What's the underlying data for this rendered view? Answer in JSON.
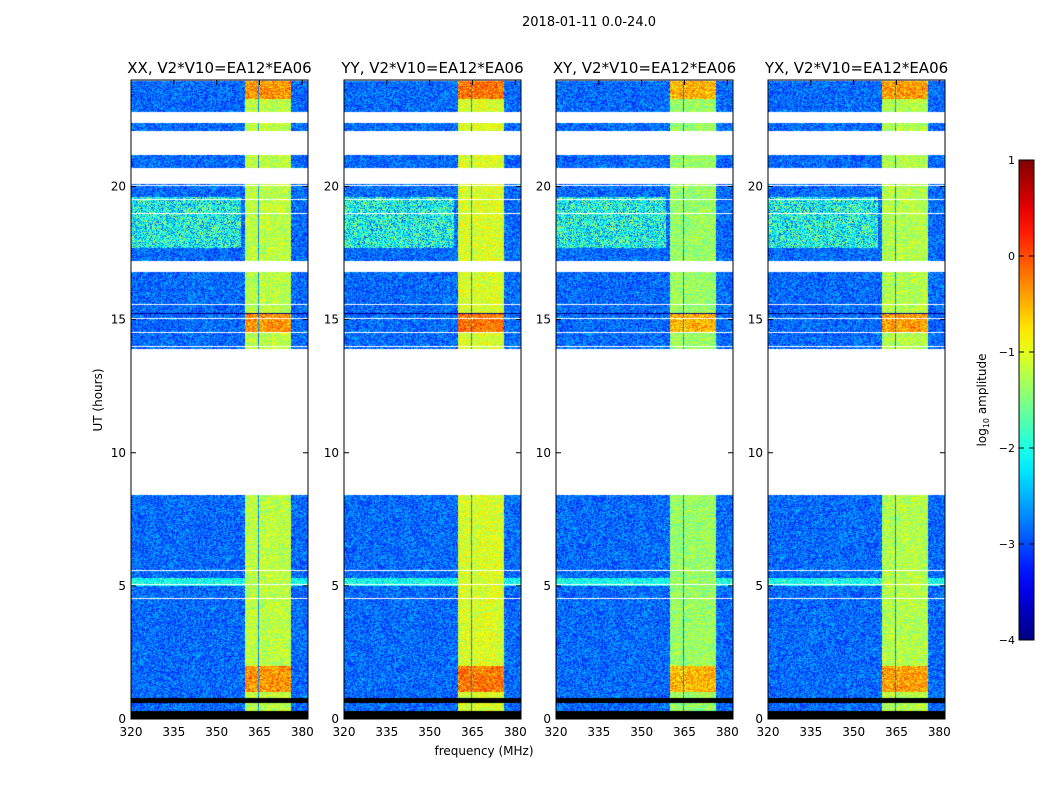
{
  "figure": {
    "suptitle": "2018-01-11 0.0-24.0"
  },
  "chart_data": {
    "type": "heatmap",
    "xlabel": "frequency (MHz)",
    "ylabel": "UT (hours)",
    "xlim": [
      320,
      382
    ],
    "ylim": [
      0,
      24
    ],
    "xticks": [
      320,
      335,
      350,
      365,
      380
    ],
    "yticks": [
      0,
      5,
      10,
      15,
      20
    ],
    "panels": [
      {
        "title": "XX, V2*V10=EA12*EA06",
        "brightness": 1.0
      },
      {
        "title": "YY, V2*V10=EA12*EA06",
        "brightness": 1.08
      },
      {
        "title": "XY, V2*V10=EA12*EA06",
        "brightness": 0.92
      },
      {
        "title": "YX, V2*V10=EA12*EA06",
        "brightness": 0.98
      }
    ],
    "data_segments_ut": [
      {
        "start": 0.0,
        "end": 0.3,
        "note": "black (flagged)"
      },
      {
        "start": 0.3,
        "end": 0.6,
        "note": "data"
      },
      {
        "start": 0.6,
        "end": 0.8,
        "note": "black (flagged)"
      },
      {
        "start": 0.8,
        "end": 8.4,
        "note": "data"
      },
      {
        "start": 13.9,
        "end": 16.8,
        "note": "data"
      },
      {
        "start": 17.2,
        "end": 20.1,
        "note": "data"
      },
      {
        "start": 20.7,
        "end": 21.2,
        "note": "data"
      },
      {
        "start": 22.1,
        "end": 22.4,
        "note": "data"
      },
      {
        "start": 22.8,
        "end": 24.0,
        "note": "data"
      }
    ],
    "rfi_band_mhz": [
      360,
      376
    ],
    "strong_rfi_subbands_mhz": [
      [
        360,
        364.5
      ],
      [
        364.7,
        369
      ],
      [
        369.2,
        373.5
      ],
      [
        373.7,
        376
      ]
    ],
    "colorbar": {
      "label": "log10 amplitude",
      "label_main": "log",
      "label_sub": "10",
      "label_rest": " amplitude",
      "vmin": -4,
      "vmax": 1,
      "ticks": [
        "1",
        "0",
        "−1",
        "−2",
        "−3",
        "−4"
      ],
      "colormap": "jet"
    }
  }
}
